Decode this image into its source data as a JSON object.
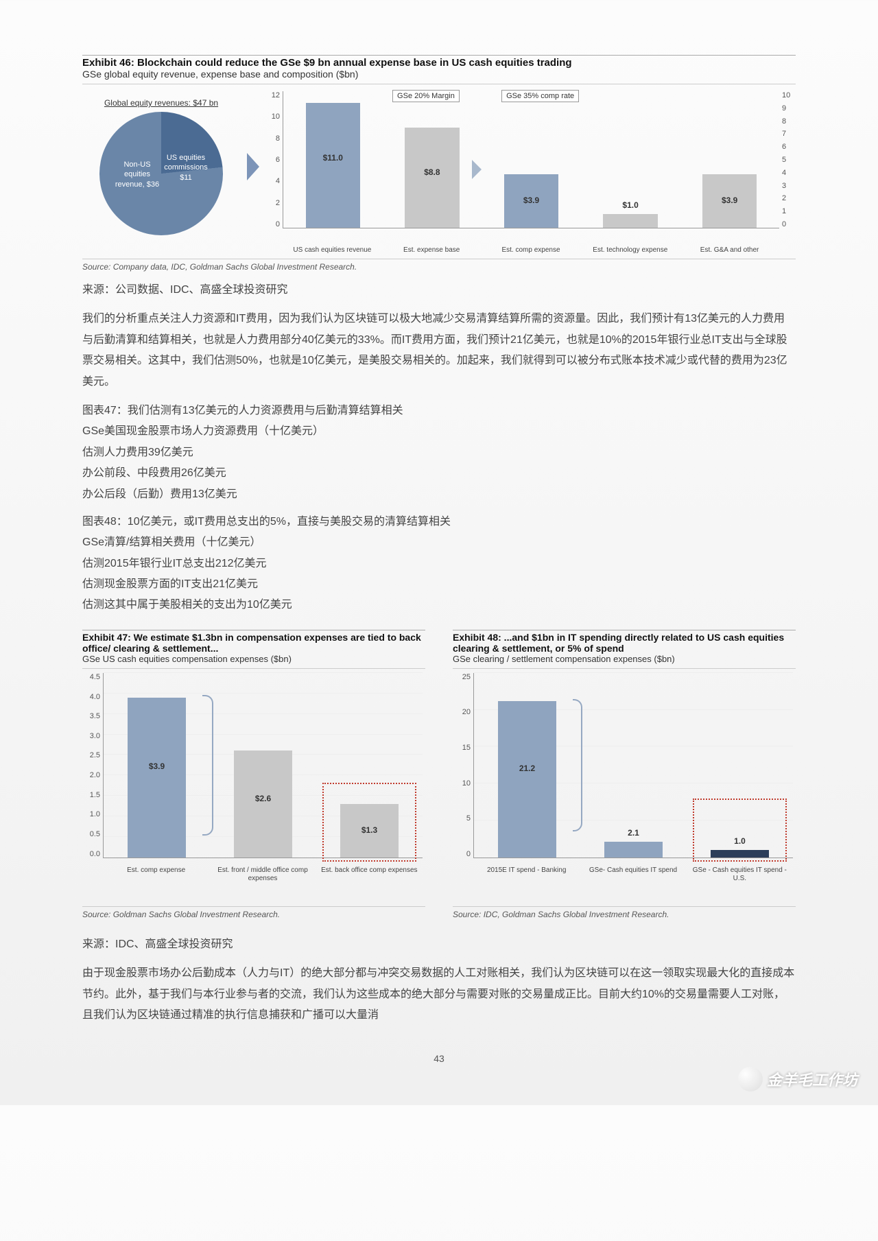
{
  "exhibit46": {
    "title": "Exhibit 46: Blockchain could reduce the GSe $9 bn annual expense base in US cash equities trading",
    "subtitle": "GSe global equity revenue, expense base and composition ($bn)",
    "pie": {
      "title": "Global equity revenues: $47 bn",
      "slices": [
        {
          "label": "Non-US equities revenue, $36",
          "value": 36,
          "color": "#6a86a8"
        },
        {
          "label": "US equities commissions $11",
          "value": 11,
          "color": "#4b6b93"
        }
      ],
      "bg_gradient": "conic-gradient(#4b6b93 0deg 84deg, #6a86a8 84deg 360deg)"
    },
    "left_axis": {
      "min": 0,
      "max": 12,
      "ticks": [
        0,
        2,
        4,
        6,
        8,
        10,
        12
      ]
    },
    "right_axis": {
      "min": 0,
      "max": 10,
      "ticks": [
        0,
        1,
        2,
        3,
        4,
        5,
        6,
        7,
        8,
        9,
        10
      ]
    },
    "arrow_color": "#a8b8cc",
    "overlays": [
      {
        "text": "GSe 20% Margin"
      },
      {
        "text": "GSe 35% comp rate"
      }
    ],
    "bars": [
      {
        "cat": "US cash equities revenue",
        "value": 11.0,
        "label": "$11.0",
        "axis": "left",
        "color": "#8fa4bf"
      },
      {
        "cat": "Est. expense base",
        "value": 8.8,
        "label": "$8.8",
        "axis": "left",
        "color": "#c8c8c8"
      },
      {
        "cat": "Est. comp expense",
        "value": 3.9,
        "label": "$3.9",
        "axis": "right",
        "color": "#8fa4bf"
      },
      {
        "cat": "Est. technology expense",
        "value": 1.0,
        "label": "$1.0",
        "axis": "right",
        "color": "#c8c8c8"
      },
      {
        "cat": "Est. G&A and other",
        "value": 3.9,
        "label": "$3.9",
        "axis": "right",
        "color": "#c8c8c8"
      }
    ],
    "source": "Source: Company data, IDC, Goldman Sachs Global Investment Research."
  },
  "cn_source_1": "来源：公司数据、IDC、高盛全球投资研究",
  "para1": "我们的分析重点关注人力资源和IT费用，因为我们认为区块链可以极大地减少交易清算结算所需的资源量。因此，我们预计有13亿美元的人力费用与后勤清算和结算相关，也就是人力费用部分40亿美元的33%。而IT费用方面，我们预计21亿美元，也就是10%的2015年银行业总IT支出与全球股票交易相关。这其中，我们估测50%，也就是10亿美元，是美股交易相关的。加起来，我们就得到可以被分布式账本技术减少或代替的费用为23亿美元。",
  "block47": [
    "图表47：我们估测有13亿美元的人力资源费用与后勤清算结算相关",
    "GSe美国现金股票市场人力资源费用（十亿美元）",
    "估测人力费用39亿美元",
    "办公前段、中段费用26亿美元",
    "办公后段（后勤）费用13亿美元"
  ],
  "block48": [
    "图表48：10亿美元，或IT费用总支出的5%，直接与美股交易的清算结算相关",
    "GSe清算/结算相关费用（十亿美元）",
    "估测2015年银行业IT总支出212亿美元",
    "估测现金股票方面的IT支出21亿美元",
    "估测这其中属于美股相关的支出为10亿美元"
  ],
  "exhibit47": {
    "title": "Exhibit 47: We estimate $1.3bn in compensation expenses are tied to back office/ clearing & settlement...",
    "subtitle": "GSe US cash equities compensation expenses ($bn)",
    "y": {
      "min": 0,
      "max": 4.5,
      "ticks": [
        "0.0",
        "0.5",
        "1.0",
        "1.5",
        "2.0",
        "2.5",
        "3.0",
        "3.5",
        "4.0",
        "4.5"
      ]
    },
    "bars": [
      {
        "cat": "Est. comp expense",
        "value": 3.9,
        "label": "$3.9",
        "color": "#8fa4bf"
      },
      {
        "cat": "Est. front / middle office comp expenses",
        "value": 2.6,
        "label": "$2.6",
        "color": "#c8c8c8"
      },
      {
        "cat": "Est. back office comp expenses",
        "value": 1.3,
        "label": "$1.3",
        "color": "#c8c8c8"
      }
    ],
    "redbox_bar_index": 2,
    "source": "Source: Goldman Sachs Global Investment Research."
  },
  "exhibit48": {
    "title": "Exhibit 48: ...and $1bn in IT spending directly related to US cash equities clearing & settlement, or 5% of spend",
    "subtitle": "GSe clearing / settlement compensation expenses ($bn)",
    "y": {
      "min": 0,
      "max": 25,
      "ticks": [
        "0",
        "5",
        "10",
        "15",
        "20",
        "25"
      ]
    },
    "bars": [
      {
        "cat": "2015E IT spend - Banking",
        "value": 21.2,
        "label": "21.2",
        "color": "#8fa4bf"
      },
      {
        "cat": "GSe- Cash equities IT spend",
        "value": 2.1,
        "label": "2.1",
        "color": "#8fa4bf",
        "stack_dark": 0
      },
      {
        "cat": "GSe - Cash equities IT spend - U.S.",
        "value": 1.0,
        "label": "1.0",
        "color": "#8fa4bf",
        "stack_dark": 1.0,
        "dark_color": "#2c3e5a"
      }
    ],
    "redbox_bar_index": 2,
    "source": "Source: IDC, Goldman Sachs Global Investment Research."
  },
  "cn_source_2": "来源：IDC、高盛全球投资研究",
  "para2": "由于现金股票市场办公后勤成本（人力与IT）的绝大部分都与冲突交易数据的人工对账相关，我们认为区块链可以在这一领取实现最大化的直接成本节约。此外，基于我们与本行业参与者的交流，我们认为这些成本的绝大部分与需要对账的交易量成正比。目前大约10%的交易量需要人工对账，且我们认为区块链通过精准的执行信息捕获和广播可以大量消",
  "page": "43",
  "watermark": "金羊毛工作坊"
}
